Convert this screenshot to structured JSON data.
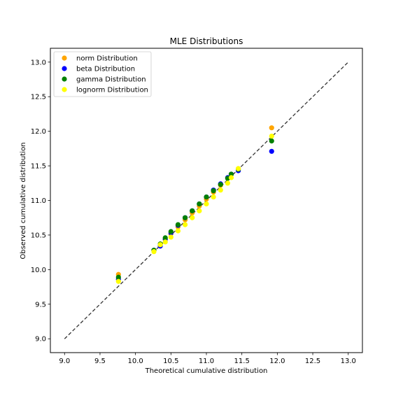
{
  "chart_data": {
    "type": "scatter",
    "title": "MLE Distributions",
    "xlabel": "Theoretical cumulative distribution",
    "ylabel": "Observed cumulative distribution",
    "xlim": [
      8.8,
      13.2
    ],
    "ylim": [
      8.8,
      13.2
    ],
    "xticks": [
      9.0,
      9.5,
      10.0,
      10.5,
      11.0,
      11.5,
      12.0,
      12.5,
      13.0
    ],
    "xtick_labels": [
      "9.0",
      "9.5",
      "10.0",
      "10.5",
      "11.0",
      "11.5",
      "12.0",
      "12.5",
      "13.0"
    ],
    "yticks": [
      9.0,
      9.5,
      10.0,
      10.5,
      11.0,
      11.5,
      12.0,
      12.5,
      13.0
    ],
    "ytick_labels": [
      "9.0",
      "9.5",
      "10.0",
      "10.5",
      "11.0",
      "11.5",
      "12.0",
      "12.5",
      "13.0"
    ],
    "grid": false,
    "legend_position": "top-left",
    "reference_line": {
      "x": [
        9.0,
        13.0
      ],
      "y": [
        9.0,
        13.0
      ],
      "style": "dashed",
      "color": "#333333"
    },
    "series": [
      {
        "name": "norm Distribution",
        "color": "#ffa500",
        "x": [
          9.76,
          10.26,
          10.35,
          10.42,
          10.5,
          10.6,
          10.7,
          10.8,
          10.9,
          11.0,
          11.1,
          11.2,
          11.3,
          11.35,
          11.45,
          11.92
        ],
        "y": [
          9.93,
          10.28,
          10.37,
          10.44,
          10.52,
          10.62,
          10.72,
          10.82,
          10.92,
          11.02,
          11.12,
          11.22,
          11.32,
          11.38,
          11.46,
          12.05
        ]
      },
      {
        "name": "beta Distribution",
        "color": "#0000ff",
        "x": [
          9.76,
          10.26,
          10.35,
          10.42,
          10.5,
          10.6,
          10.7,
          10.8,
          10.9,
          11.0,
          11.1,
          11.2,
          11.3,
          11.35,
          11.45,
          11.92
        ],
        "y": [
          9.86,
          10.28,
          10.34,
          10.44,
          10.53,
          10.64,
          10.75,
          10.85,
          10.95,
          11.05,
          11.15,
          11.24,
          11.33,
          11.38,
          11.43,
          11.71
        ]
      },
      {
        "name": "gamma Distribution",
        "color": "#008000",
        "x": [
          9.76,
          10.26,
          10.35,
          10.42,
          10.5,
          10.6,
          10.7,
          10.8,
          10.9,
          11.0,
          11.1,
          11.2,
          11.3,
          11.35,
          11.45,
          11.92
        ],
        "y": [
          9.89,
          10.28,
          10.37,
          10.46,
          10.55,
          10.65,
          10.75,
          10.85,
          10.95,
          11.05,
          11.14,
          11.23,
          11.32,
          11.38,
          11.45,
          11.86
        ]
      },
      {
        "name": "lognorm Distribution",
        "color": "#ffff00",
        "x": [
          9.76,
          10.26,
          10.35,
          10.42,
          10.5,
          10.6,
          10.7,
          10.8,
          10.9,
          11.0,
          11.1,
          11.2,
          11.3,
          11.35,
          11.45,
          11.92
        ],
        "y": [
          9.83,
          10.26,
          10.36,
          10.4,
          10.47,
          10.56,
          10.65,
          10.75,
          10.85,
          10.95,
          11.05,
          11.15,
          11.25,
          11.33,
          11.46,
          11.93
        ]
      }
    ]
  }
}
